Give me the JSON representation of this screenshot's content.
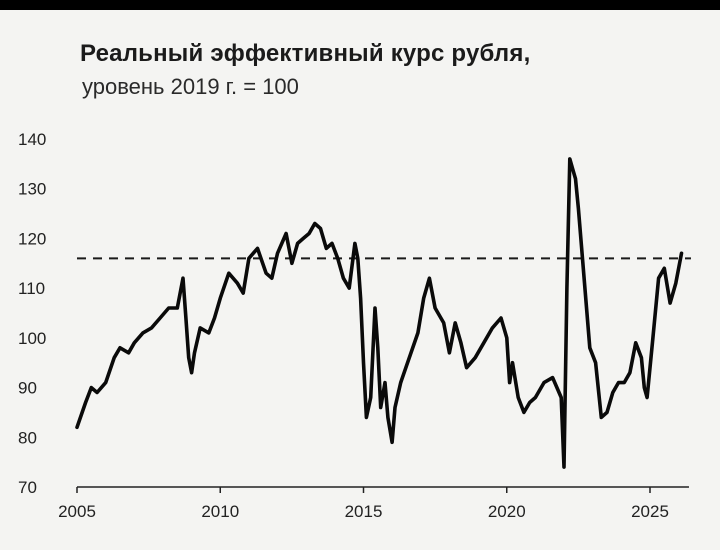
{
  "chart_data": {
    "type": "line",
    "title": "Реальный эффективный курс рубля,",
    "subtitle": "уровень 2019 г. = 100",
    "xlabel": "",
    "ylabel": "",
    "xlim": [
      2005,
      2026.5
    ],
    "ylim": [
      70,
      140
    ],
    "xticks": [
      "2005",
      "2010",
      "2015",
      "2020",
      "2025"
    ],
    "yticks": [
      "70",
      "80",
      "90",
      "100",
      "110",
      "120",
      "130",
      "140"
    ],
    "grid": false,
    "reference_line": {
      "y": 116,
      "style": "dashed"
    },
    "series": [
      {
        "x": [
          2005.0,
          2005.3,
          2005.5,
          2005.7,
          2006.0,
          2006.3,
          2006.5,
          2006.8,
          2007.0,
          2007.3,
          2007.6,
          2007.9,
          2008.2,
          2008.5,
          2008.7,
          2008.8,
          2008.9,
          2009.0,
          2009.1,
          2009.3,
          2009.6,
          2009.8,
          2010.0,
          2010.3,
          2010.6,
          2010.8,
          2011.0,
          2011.3,
          2011.6,
          2011.8,
          2012.0,
          2012.3,
          2012.5,
          2012.7,
          2012.9,
          2013.1,
          2013.3,
          2013.5,
          2013.7,
          2013.9,
          2014.1,
          2014.3,
          2014.5,
          2014.7,
          2014.8,
          2014.9,
          2015.0,
          2015.1,
          2015.25,
          2015.4,
          2015.5,
          2015.6,
          2015.75,
          2015.85,
          2016.0,
          2016.1,
          2016.3,
          2016.6,
          2016.9,
          2017.1,
          2017.3,
          2017.5,
          2017.8,
          2018.0,
          2018.2,
          2018.4,
          2018.6,
          2018.9,
          2019.2,
          2019.5,
          2019.8,
          2020.0,
          2020.1,
          2020.2,
          2020.4,
          2020.6,
          2020.8,
          2021.0,
          2021.3,
          2021.6,
          2021.9,
          2022.0,
          2022.1,
          2022.2,
          2022.3,
          2022.4,
          2022.5,
          2022.7,
          2022.9,
          2023.1,
          2023.3,
          2023.5,
          2023.7,
          2023.9,
          2024.1,
          2024.3,
          2024.5,
          2024.7,
          2024.8,
          2024.9,
          2025.1,
          2025.3,
          2025.5,
          2025.7,
          2025.9,
          2026.1
        ],
        "values": [
          82,
          87,
          90,
          89,
          91,
          96,
          98,
          97,
          99,
          101,
          102,
          104,
          106,
          106,
          112,
          104,
          96,
          93,
          97,
          102,
          101,
          104,
          108,
          113,
          111,
          109,
          116,
          118,
          113,
          112,
          117,
          121,
          115,
          119,
          120,
          121,
          123,
          122,
          118,
          119,
          116,
          112,
          110,
          119,
          116,
          108,
          95,
          84,
          88,
          106,
          98,
          86,
          91,
          84,
          79,
          86,
          91,
          96,
          101,
          108,
          112,
          106,
          103,
          97,
          103,
          99,
          94,
          96,
          99,
          102,
          104,
          100,
          91,
          95,
          88,
          85,
          87,
          88,
          91,
          92,
          88,
          74,
          110,
          136,
          134,
          132,
          126,
          112,
          98,
          95,
          84,
          85,
          89,
          91,
          91,
          93,
          99,
          96,
          90,
          88,
          100,
          112,
          114,
          107,
          111,
          117
        ]
      }
    ]
  }
}
